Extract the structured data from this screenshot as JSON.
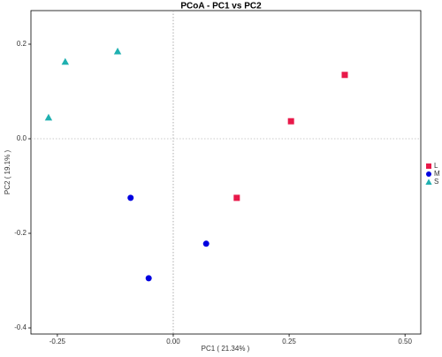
{
  "chart_data": {
    "type": "scatter",
    "title": "PCoA - PC1 vs PC2",
    "x_label": "PC1 ( 21.34% )",
    "y_label": "PC2 ( 19.1% )",
    "series": [
      {
        "name": "L",
        "color": "#e8194a",
        "marker": "square",
        "x": [
          0.37,
          0.254,
          0.137
        ],
        "values": [
          0.135,
          0.037,
          -0.125
        ]
      },
      {
        "name": "M",
        "color": "#0000e0",
        "marker": "circle",
        "x": [
          -0.092,
          0.071,
          -0.053
        ],
        "values": [
          -0.125,
          -0.222,
          -0.295
        ]
      },
      {
        "name": "S",
        "color": "#1fb0b0",
        "marker": "triangle",
        "x": [
          -0.269,
          -0.233,
          -0.12
        ],
        "values": [
          0.045,
          0.163,
          0.185
        ]
      }
    ],
    "xlim": [
      -0.307,
      0.534
    ],
    "ylim": [
      -0.413,
      0.271
    ],
    "xticks": [
      -0.25,
      {
        "value": 0,
        "label": "0.00"
      },
      0.25,
      {
        "value": 0.5,
        "label": "0.50"
      }
    ],
    "yticks": [
      0.2,
      {
        "value": 0,
        "label": "0.0"
      },
      -0.2,
      -0.4
    ],
    "legend": "right"
  }
}
